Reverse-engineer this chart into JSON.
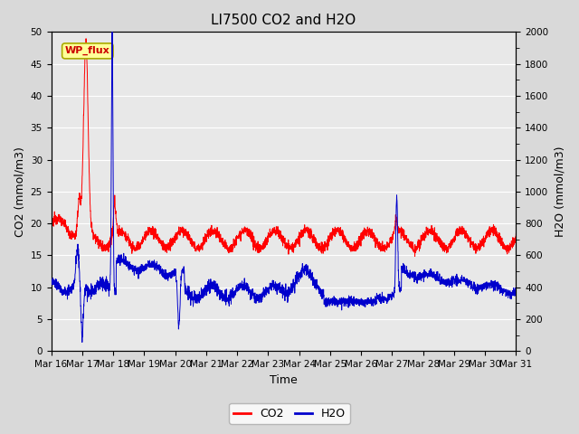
{
  "title": "LI7500 CO2 and H2O",
  "xlabel": "Time",
  "ylabel_left": "CO2 (mmol/m3)",
  "ylabel_right": "H2O (mmol/m3)",
  "ylim_left": [
    0,
    50
  ],
  "ylim_right": [
    0,
    2000
  ],
  "yticks_left": [
    0,
    5,
    10,
    15,
    20,
    25,
    30,
    35,
    40,
    45,
    50
  ],
  "yticks_right": [
    0,
    200,
    400,
    600,
    800,
    1000,
    1200,
    1400,
    1600,
    1800,
    2000
  ],
  "n_days": 15,
  "xtick_labels": [
    "Mar 16",
    "Mar 17",
    "Mar 18",
    "Mar 19",
    "Mar 20",
    "Mar 21",
    "Mar 22",
    "Mar 23",
    "Mar 24",
    "Mar 25",
    "Mar 26",
    "Mar 27",
    "Mar 28",
    "Mar 29",
    "Mar 30",
    "Mar 31"
  ],
  "co2_color": "#ff0000",
  "h2o_color": "#0000cc",
  "background_color": "#d9d9d9",
  "plot_bg_color": "#e8e8e8",
  "grid_color": "#ffffff",
  "annotation_text": "WP_flux",
  "annotation_bg": "#ffff99",
  "annotation_border": "#aaaa00",
  "title_fontsize": 11,
  "axis_label_fontsize": 9,
  "tick_fontsize": 7.5
}
